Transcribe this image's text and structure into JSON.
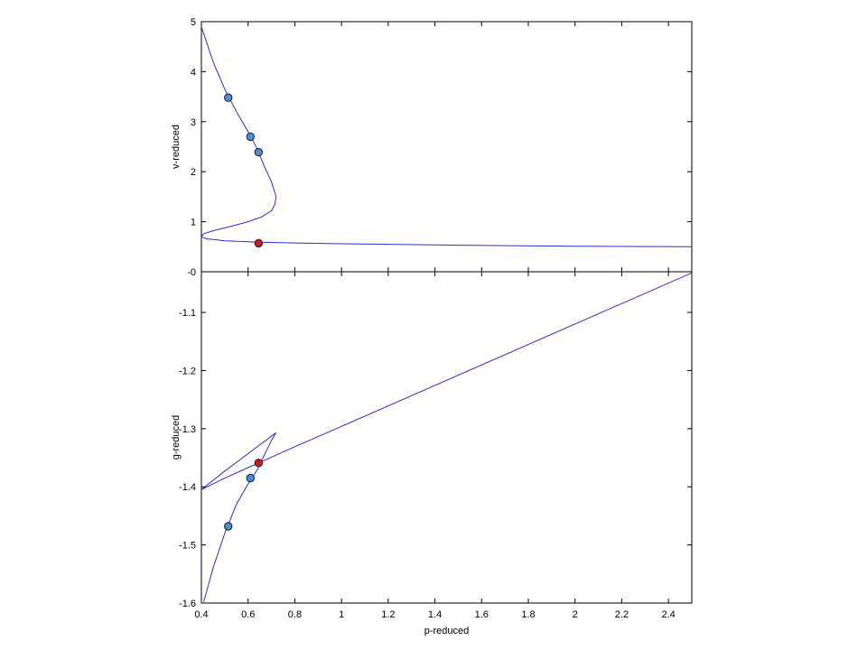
{
  "chart_data": [
    {
      "type": "line",
      "xlabel": "",
      "ylabel": "v-reduced",
      "xlim": [
        0.4,
        2.5
      ],
      "ylim": [
        0,
        5
      ],
      "yticks": [
        0,
        1,
        2,
        3,
        4,
        5
      ],
      "ytick_labels": [
        "-0",
        "1",
        "2",
        "3",
        "4",
        "5"
      ],
      "grid": false,
      "line_color": "#2b2bd6",
      "series": [
        {
          "x": [
            0.4,
            0.45,
            0.5,
            0.55,
            0.6,
            0.64,
            0.67,
            0.7,
            0.72,
            0.715,
            0.7,
            0.66,
            0.6,
            0.52,
            0.45,
            0.41,
            0.4,
            0.42,
            0.5,
            0.64,
            0.8,
            1.0,
            1.5,
            2.0,
            2.5
          ],
          "y": [
            4.9,
            4.2,
            3.65,
            3.2,
            2.8,
            2.45,
            2.1,
            1.8,
            1.5,
            1.35,
            1.22,
            1.1,
            1.0,
            0.9,
            0.82,
            0.76,
            0.7,
            0.66,
            0.62,
            0.59,
            0.575,
            0.56,
            0.53,
            0.51,
            0.5
          ]
        }
      ],
      "points": [
        {
          "x": 0.515,
          "y": 3.48,
          "color": "#4a8fd4"
        },
        {
          "x": 0.61,
          "y": 2.7,
          "color": "#4a8fd4"
        },
        {
          "x": 0.645,
          "y": 2.39,
          "color": "#4a8fd4"
        },
        {
          "x": 0.645,
          "y": 0.57,
          "color": "#d81818"
        }
      ]
    },
    {
      "type": "line",
      "xlabel": "p-reduced",
      "ylabel": "g-reduced",
      "xlim": [
        0.4,
        2.5
      ],
      "ylim": [
        -1.6,
        -1.03
      ],
      "xticks": [
        0.4,
        0.6,
        0.8,
        1,
        1.2,
        1.4,
        1.6,
        1.8,
        2,
        2.2,
        2.4
      ],
      "xtick_labels": [
        "0.4",
        "0.6",
        "0.8",
        "1",
        "1.2",
        "1.4",
        "1.6",
        "1.8",
        "2",
        "2.2",
        "2.4"
      ],
      "yticks": [
        -1.6,
        -1.5,
        -1.4,
        -1.3,
        -1.2,
        -1.1
      ],
      "ytick_labels": [
        "-1.6",
        "-1.5",
        "-1.4",
        "-1.3",
        "-1.2",
        "-1.1"
      ],
      "grid": false,
      "line_color": "#2b2bd6",
      "series": [
        {
          "x": [
            0.41,
            0.45,
            0.5,
            0.55,
            0.6,
            0.64,
            0.67,
            0.7,
            0.72,
            0.6,
            0.5,
            0.4,
            0.5,
            0.6,
            0.645,
            0.8,
            1.0,
            1.5,
            2.0,
            2.5
          ],
          "y": [
            -1.598,
            -1.54,
            -1.48,
            -1.43,
            -1.395,
            -1.37,
            -1.345,
            -1.32,
            -1.307,
            -1.343,
            -1.373,
            -1.405,
            -1.385,
            -1.367,
            -1.359,
            -1.331,
            -1.296,
            -1.208,
            -1.12,
            -1.032
          ]
        }
      ],
      "points": [
        {
          "x": 0.515,
          "y": -1.468,
          "color": "#4a8fd4"
        },
        {
          "x": 0.61,
          "y": -1.385,
          "color": "#4a8fd4"
        },
        {
          "x": 0.645,
          "y": -1.359,
          "color": "#d81818"
        }
      ]
    }
  ]
}
